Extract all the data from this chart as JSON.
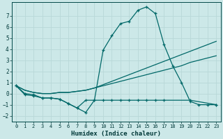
{
  "xlabel": "Humidex (Indice chaleur)",
  "bg_color": "#cce8e8",
  "grid_color": "#b0d8d8",
  "line_color": "#006868",
  "xlim": [
    -0.5,
    23.5
  ],
  "ylim": [
    -2.5,
    8.2
  ],
  "xticks": [
    0,
    1,
    2,
    3,
    4,
    5,
    6,
    7,
    8,
    9,
    10,
    11,
    12,
    13,
    14,
    15,
    16,
    17,
    18,
    19,
    20,
    21,
    22,
    23
  ],
  "yticks": [
    -2,
    -1,
    0,
    1,
    2,
    3,
    4,
    5,
    6,
    7
  ],
  "series1_x": [
    0,
    1,
    2,
    3,
    4,
    5,
    6,
    7,
    8,
    9,
    10,
    11,
    12,
    13,
    14,
    15,
    16,
    17,
    18,
    19,
    20,
    21,
    22,
    23
  ],
  "series1_y": [
    0.7,
    0.0,
    -0.1,
    -0.4,
    -0.4,
    -0.5,
    -0.9,
    -1.3,
    -1.7,
    -0.6,
    3.9,
    5.2,
    6.3,
    6.5,
    7.5,
    7.8,
    7.2,
    4.4,
    2.5,
    1.0,
    -0.7,
    -1.0,
    -1.0,
    -1.0
  ],
  "series2_x": [
    0,
    1,
    2,
    3,
    4,
    5,
    6,
    7,
    8,
    9,
    10,
    11,
    12,
    13,
    14,
    15,
    16,
    17,
    18,
    19,
    20,
    21,
    22,
    23
  ],
  "series2_y": [
    0.7,
    0.3,
    0.1,
    0.0,
    0.0,
    0.1,
    0.1,
    0.2,
    0.3,
    0.5,
    0.7,
    0.9,
    1.1,
    1.3,
    1.5,
    1.7,
    1.9,
    2.1,
    2.3,
    2.5,
    2.8,
    3.0,
    3.2,
    3.4
  ],
  "series3_x": [
    0,
    1,
    2,
    3,
    4,
    5,
    6,
    7,
    8,
    9,
    10,
    11,
    12,
    13,
    14,
    15,
    16,
    17,
    18,
    19,
    20,
    21,
    22,
    23
  ],
  "series3_y": [
    0.7,
    0.3,
    0.1,
    0.0,
    0.0,
    0.1,
    0.1,
    0.2,
    0.3,
    0.5,
    0.8,
    1.1,
    1.4,
    1.7,
    2.0,
    2.3,
    2.6,
    2.9,
    3.2,
    3.5,
    3.8,
    4.1,
    4.4,
    4.7
  ],
  "series4_x": [
    0,
    1,
    2,
    3,
    4,
    5,
    6,
    7,
    8,
    9,
    10,
    11,
    12,
    13,
    14,
    15,
    16,
    17,
    20,
    23
  ],
  "series4_y": [
    0.7,
    -0.1,
    -0.2,
    -0.4,
    -0.4,
    -0.5,
    -0.9,
    -1.3,
    -0.6,
    -0.6,
    -0.6,
    -0.6,
    -0.6,
    -0.6,
    -0.6,
    -0.6,
    -0.6,
    -0.6,
    -0.6,
    -1.0
  ]
}
